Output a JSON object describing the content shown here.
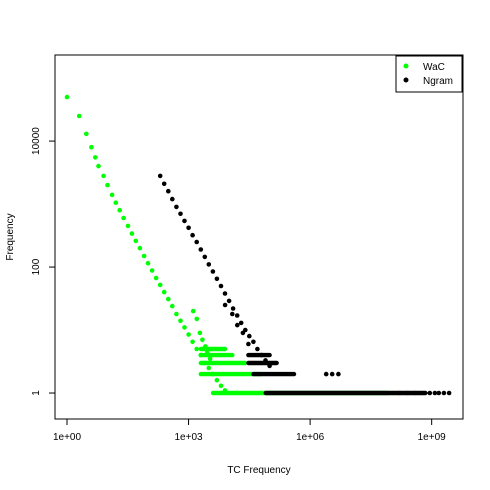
{
  "chart_data": {
    "type": "scatter",
    "title": "",
    "xlabel": "TC Frequency",
    "ylabel": "Frequency",
    "x_scale": "log",
    "y_scale": "log",
    "xlim": [
      1,
      3000000000
    ],
    "ylim": [
      0.6,
      150000
    ],
    "x_ticks": [
      {
        "value": 1,
        "label": "1e+00"
      },
      {
        "value": 1000,
        "label": "1e+03"
      },
      {
        "value": 1000000,
        "label": "1e+06"
      },
      {
        "value": 1000000000,
        "label": "1e+09"
      }
    ],
    "y_ticks": [
      {
        "value": 1,
        "label": "1"
      },
      {
        "value": 100,
        "label": "100"
      },
      {
        "value": 10000,
        "label": "10000"
      }
    ],
    "grid": false,
    "legend": {
      "position": "top-right",
      "entries": [
        {
          "label": "WaC",
          "color": "#00ff00"
        },
        {
          "label": "Ngram",
          "color": "#000000"
        }
      ]
    },
    "series": [
      {
        "name": "WaC",
        "color": "#00ff00",
        "points": [
          [
            1,
            50000
          ],
          [
            2,
            25000
          ],
          [
            3,
            13000
          ],
          [
            4,
            8000
          ],
          [
            5,
            5500
          ],
          [
            6,
            4000
          ],
          [
            8,
            2800
          ],
          [
            10,
            2000
          ],
          [
            13,
            1400
          ],
          [
            16,
            1050
          ],
          [
            20,
            800
          ],
          [
            25,
            600
          ],
          [
            32,
            450
          ],
          [
            40,
            340
          ],
          [
            50,
            260
          ],
          [
            63,
            200
          ],
          [
            80,
            150
          ],
          [
            100,
            115
          ],
          [
            126,
            88
          ],
          [
            158,
            67
          ],
          [
            200,
            52
          ],
          [
            251,
            40
          ],
          [
            316,
            31
          ],
          [
            398,
            24
          ],
          [
            501,
            18
          ],
          [
            631,
            14
          ],
          [
            794,
            11
          ],
          [
            1000,
            8.5
          ],
          [
            1259,
            6.5
          ],
          [
            1585,
            5
          ],
          [
            2000,
            4
          ],
          [
            2512,
            3
          ],
          [
            3162,
            2.5
          ],
          [
            3981,
            2
          ],
          [
            5012,
            1.6
          ],
          [
            6310,
            1.3
          ],
          [
            7943,
            1.1
          ],
          [
            1300,
            20
          ],
          [
            1600,
            15
          ],
          [
            1900,
            9
          ],
          [
            2200,
            7
          ],
          [
            2600,
            5.5
          ],
          [
            2900,
            4.5
          ],
          [
            3400,
            3.5
          ]
        ],
        "bands": [
          {
            "y": 5,
            "x_from": 2000,
            "x_to": 8000
          },
          {
            "y": 4,
            "x_from": 2000,
            "x_to": 12000
          },
          {
            "y": 3,
            "x_from": 2000,
            "x_to": 25000
          },
          {
            "y": 2,
            "x_from": 2000,
            "x_to": 60000
          },
          {
            "y": 1,
            "x_from": 4000,
            "x_to": 80000000
          }
        ],
        "scattered_tail": [
          160000000,
          250000000,
          400000000
        ]
      },
      {
        "name": "Ngram",
        "color": "#000000",
        "points": [
          [
            200,
            2800
          ],
          [
            250,
            2100
          ],
          [
            316,
            1600
          ],
          [
            398,
            1200
          ],
          [
            501,
            900
          ],
          [
            631,
            700
          ],
          [
            794,
            540
          ],
          [
            1000,
            420
          ],
          [
            1259,
            320
          ],
          [
            1585,
            250
          ],
          [
            2000,
            190
          ],
          [
            2512,
            145
          ],
          [
            3162,
            110
          ],
          [
            3981,
            85
          ],
          [
            5012,
            65
          ],
          [
            6310,
            50
          ],
          [
            7943,
            38
          ],
          [
            10000,
            29
          ],
          [
            12589,
            22
          ],
          [
            15849,
            17
          ],
          [
            19953,
            13
          ],
          [
            25119,
            10
          ],
          [
            31623,
            8
          ],
          [
            39811,
            6.5
          ],
          [
            50119,
            5
          ],
          [
            63096,
            4
          ],
          [
            79433,
            3.3
          ],
          [
            100000,
            2.7
          ],
          [
            8000,
            25
          ],
          [
            12000,
            18
          ],
          [
            16000,
            12
          ],
          [
            22000,
            9
          ],
          [
            30000,
            6
          ]
        ],
        "bands": [
          {
            "y": 4,
            "x_from": 30000,
            "x_to": 100000
          },
          {
            "y": 3,
            "x_from": 30000,
            "x_to": 150000
          },
          {
            "y": 2,
            "x_from": 40000,
            "x_to": 400000
          },
          {
            "y": 1,
            "x_from": 80000,
            "x_to": 700000000
          }
        ],
        "scattered_tail": [
          [
            2500000,
            2
          ],
          [
            3500000,
            2
          ],
          [
            5000000,
            2
          ],
          [
            900000000,
            1
          ],
          [
            1200000000,
            1
          ],
          [
            1500000000,
            1
          ],
          [
            2000000000,
            1
          ],
          [
            2700000000,
            1
          ]
        ]
      }
    ]
  }
}
